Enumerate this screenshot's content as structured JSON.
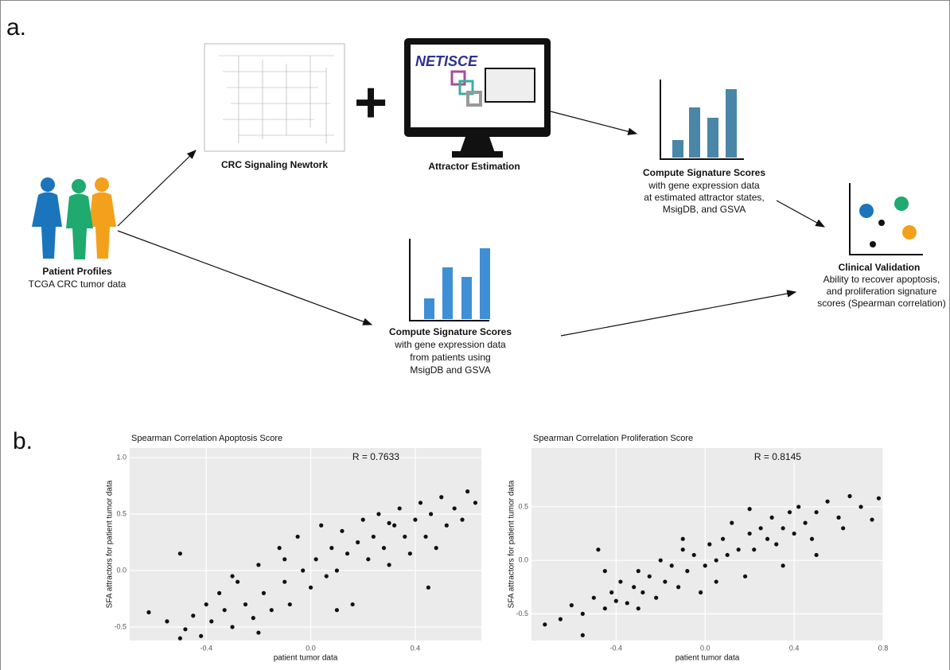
{
  "panel_a": {
    "label": "a.",
    "network": {
      "label": "CRC Signaling Newtork"
    },
    "plus": "+",
    "monitor": {
      "brand": "NETISCE",
      "label": "Attractor Estimation"
    },
    "patients": {
      "title": "Patient Profiles",
      "subtitle": "TCGA CRC tumor data"
    },
    "scores_attractor": {
      "title": "Compute Signature Scores",
      "lines": [
        "with gene expression data",
        "at estimated attractor states,",
        "MsigDB, and GSVA"
      ]
    },
    "scores_patients": {
      "title": "Compute Signature Scores",
      "lines": [
        "with gene expression data",
        "from patients using",
        "MsigDB and GSVA"
      ]
    },
    "validation": {
      "title": "Clinical Validation",
      "lines": [
        "Ability to recover apoptosis,",
        "and proliferation signature",
        "scores (Spearman correlation)"
      ]
    }
  },
  "panel_b": {
    "label": "b."
  },
  "chart_data": [
    {
      "type": "scatter",
      "title": "Spearman Correlation Apoptosis Score",
      "annotation": "R =  0.7633",
      "x_label": "patient tumor data",
      "y_label": "SFA attractors for patient tumor data",
      "color": "#111111",
      "background": "#ebebeb",
      "grid": true,
      "xlim": [
        -0.693,
        0.653
      ],
      "ylim": [
        -0.62,
        1.085
      ],
      "xticks": [
        -0.4,
        {
          "value": 0,
          "label": "0.0"
        },
        0.4
      ],
      "yticks": [
        -0.5,
        {
          "value": 0,
          "label": "0.0"
        },
        0.5,
        {
          "value": 1,
          "label": "1.0"
        }
      ],
      "x": [
        -0.62,
        -0.55,
        -0.5,
        -0.48,
        -0.45,
        -0.42,
        -0.4,
        -0.38,
        -0.35,
        -0.33,
        -0.3,
        -0.28,
        -0.25,
        -0.22,
        -0.2,
        -0.18,
        -0.15,
        -0.12,
        -0.1,
        -0.08,
        -0.05,
        -0.03,
        0.0,
        0.02,
        0.04,
        0.06,
        0.08,
        0.1,
        0.12,
        0.14,
        0.16,
        0.18,
        0.2,
        0.22,
        0.24,
        0.26,
        0.28,
        0.3,
        0.32,
        0.34,
        0.36,
        0.38,
        0.4,
        0.42,
        0.44,
        0.46,
        0.48,
        0.5,
        0.52,
        0.55,
        0.58,
        0.6,
        0.63,
        -0.5,
        -0.3,
        -0.1,
        0.1,
        0.3,
        0.45,
        -0.2
      ],
      "y": [
        -0.37,
        -0.45,
        0.15,
        -0.52,
        -0.4,
        -0.58,
        -0.3,
        -0.45,
        -0.2,
        -0.35,
        -0.5,
        -0.1,
        -0.3,
        -0.42,
        0.05,
        -0.2,
        -0.35,
        0.2,
        -0.1,
        -0.3,
        0.3,
        0.0,
        -0.15,
        0.1,
        0.4,
        -0.05,
        0.2,
        0.0,
        0.35,
        0.15,
        -0.3,
        0.25,
        0.45,
        0.1,
        0.3,
        0.5,
        0.2,
        0.05,
        0.4,
        0.55,
        0.3,
        0.15,
        0.45,
        0.6,
        0.3,
        0.5,
        0.2,
        0.65,
        0.4,
        0.55,
        0.45,
        0.7,
        0.6,
        -0.6,
        -0.05,
        0.1,
        -0.35,
        0.42,
        -0.15,
        -0.55
      ]
    },
    {
      "type": "scatter",
      "title": "Spearman Correlation Proliferation Score",
      "annotation": "R =  0.8145",
      "x_label": "patient tumor data",
      "y_label": "SFA attractors for patient tumor data",
      "color": "#111111",
      "background": "#ebebeb",
      "grid": true,
      "xlim": [
        -0.78,
        0.8
      ],
      "ylim": [
        -0.75,
        1.05
      ],
      "xticks": [
        -0.4,
        {
          "value": 0,
          "label": "0.0"
        },
        0.4,
        0.8
      ],
      "yticks": [
        -0.5,
        {
          "value": 0,
          "label": "0.0"
        },
        0.5
      ],
      "x": [
        -0.72,
        -0.65,
        -0.6,
        -0.55,
        -0.5,
        -0.48,
        -0.45,
        -0.42,
        -0.4,
        -0.38,
        -0.35,
        -0.32,
        -0.3,
        -0.28,
        -0.25,
        -0.22,
        -0.2,
        -0.18,
        -0.15,
        -0.12,
        -0.1,
        -0.08,
        -0.05,
        -0.02,
        0.0,
        0.02,
        0.05,
        0.08,
        0.1,
        0.12,
        0.15,
        0.18,
        0.2,
        0.22,
        0.25,
        0.28,
        0.3,
        0.32,
        0.35,
        0.38,
        0.4,
        0.42,
        0.45,
        0.48,
        0.5,
        0.55,
        0.6,
        0.65,
        0.7,
        0.75,
        0.78,
        -0.55,
        -0.3,
        -0.1,
        0.05,
        0.2,
        0.35,
        0.5,
        0.62,
        -0.45
      ],
      "y": [
        -0.6,
        -0.55,
        -0.42,
        -0.5,
        -0.35,
        0.1,
        -0.45,
        -0.3,
        -0.38,
        -0.2,
        -0.4,
        -0.25,
        -0.1,
        -0.3,
        -0.15,
        -0.35,
        0.0,
        -0.2,
        -0.05,
        -0.25,
        0.1,
        -0.1,
        0.05,
        -0.3,
        -0.05,
        0.15,
        0.0,
        0.2,
        0.05,
        0.35,
        0.1,
        -0.15,
        0.25,
        0.1,
        0.3,
        0.2,
        0.4,
        0.15,
        0.3,
        0.45,
        0.25,
        0.5,
        0.35,
        0.2,
        0.45,
        0.55,
        0.4,
        0.6,
        0.5,
        0.38,
        0.58,
        -0.7,
        -0.45,
        0.2,
        -0.2,
        0.48,
        -0.05,
        0.05,
        0.3,
        -0.1
      ]
    }
  ]
}
